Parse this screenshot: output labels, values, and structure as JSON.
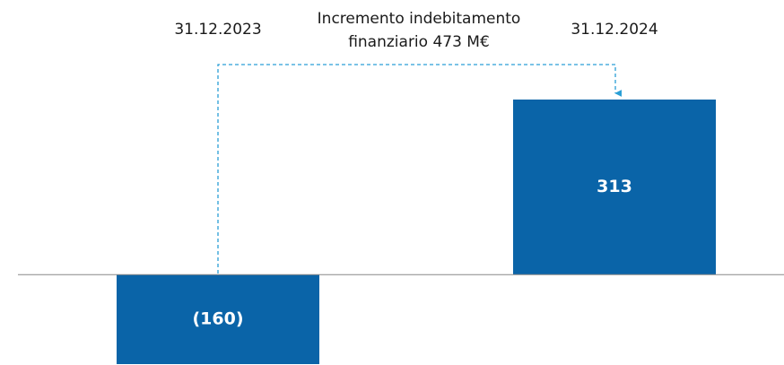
{
  "chart_data": {
    "type": "bar",
    "categories": [
      "31.12.2023",
      "31.12.2024"
    ],
    "values": [
      -160,
      313
    ],
    "value_labels": [
      "(160)",
      "313"
    ],
    "color": "#0a64a8",
    "ylim": [
      -160,
      313
    ],
    "annotation": [
      "Incremento indebitamento",
      "finanziario 473 M€"
    ]
  }
}
